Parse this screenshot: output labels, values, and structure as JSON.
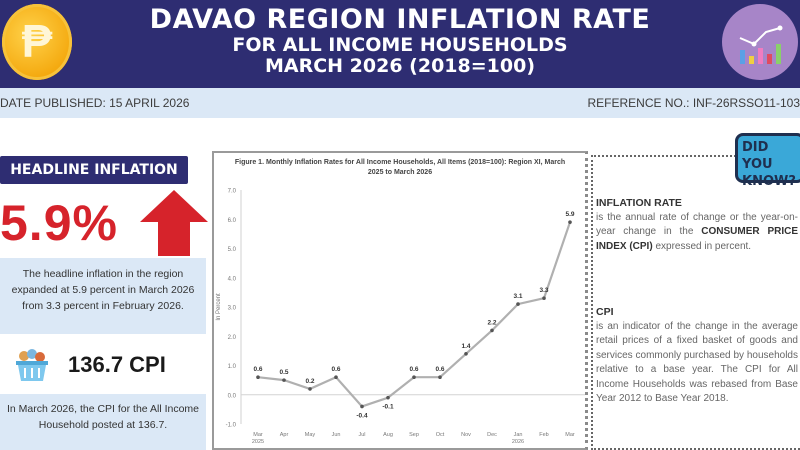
{
  "header": {
    "title_line1": "DAVAO REGION INFLATION RATE",
    "title_line2": "FOR ALL INCOME HOUSEHOLDS",
    "title_line3": "MARCH 2026 (2018=100)",
    "logo_icon": "peso-coin-icon",
    "chart_icon": "chart-growth-icon",
    "bg_color": "#2e2d72"
  },
  "subbar": {
    "date_published": "DATE PUBLISHED: 15 APRIL 2026",
    "reference_no": "REFERENCE NO.: INF-26RSSO11-103"
  },
  "headline": {
    "label": "HEADLINE INFLATION",
    "value": "5.9%",
    "trend_icon": "arrow-up-icon",
    "accent_color": "#d6232b",
    "description": "The headline inflation in the region expanded at 5.9 percent in March 2026 from 3.3 percent in February 2026."
  },
  "cpi": {
    "icon": "basket-icon",
    "value": "136.7 CPI",
    "description": "In March 2026, the CPI for the All Income Household posted at 136.7."
  },
  "did_you_know": {
    "badge": "DID YOU KNOW?",
    "inflation_title": "INFLATION RATE",
    "inflation_text_1": "is the annual rate of change or the year-on-year change in the",
    "inflation_text_strong": "CONSUMER PRICE INDEX (CPI)",
    "inflation_text_2": "expressed in percent.",
    "cpi_title": "CPI",
    "cpi_text": "is an indicator of the change in the average retail prices of a fixed basket of goods and services commonly purchased by households relative to a base year. The CPI for All Income Households was rebased from Base Year 2012 to Base Year 2018."
  },
  "chart_data": {
    "type": "line",
    "title": "Figure 1. Monthly Inflation Rates for All Income Households, All Items (2018=100): Region XI, March 2025 to March 2026",
    "xlabel": "",
    "ylabel": "In Percent",
    "categories": [
      "Mar 2025",
      "Apr",
      "May",
      "Jun",
      "Jul",
      "Aug",
      "Sep",
      "Oct",
      "Nov",
      "Dec",
      "Jan 2026",
      "Feb",
      "Mar"
    ],
    "values": [
      0.6,
      0.5,
      0.2,
      0.6,
      -0.4,
      -0.1,
      0.6,
      0.6,
      1.4,
      2.2,
      3.1,
      3.3,
      5.9
    ],
    "value_labels": [
      "0.6",
      "0.5",
      "0.2",
      "0.6",
      "-0.4",
      "-0.1",
      "0.6",
      "0.6",
      "1.4",
      "2.2",
      "3.1",
      "3.3",
      "5.9"
    ],
    "yticks": [
      "7.0",
      "6.0",
      "5.0",
      "4.0",
      "3.0",
      "2.0",
      "1.0",
      "0.0",
      "-1.0"
    ],
    "ylim": [
      -1.0,
      7.0
    ],
    "grid": false,
    "legend": "none",
    "line_color": "#b0b0b0"
  }
}
